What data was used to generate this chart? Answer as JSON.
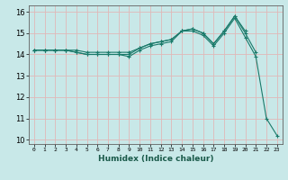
{
  "xlabel": "Humidex (Indice chaleur)",
  "ylabel": "",
  "xlim": [
    -0.5,
    23.5
  ],
  "ylim": [
    9.8,
    16.3
  ],
  "yticks": [
    10,
    11,
    12,
    13,
    14,
    15,
    16
  ],
  "xticks": [
    0,
    1,
    2,
    3,
    4,
    5,
    6,
    7,
    8,
    9,
    10,
    11,
    12,
    13,
    14,
    15,
    16,
    17,
    18,
    19,
    20,
    21,
    22,
    23
  ],
  "bg_color": "#c8e8e8",
  "grid_color": "#e0b8b8",
  "line_color": "#1a7a6a",
  "series": [
    [
      14.2,
      14.2,
      14.2,
      14.2,
      14.1,
      14.0,
      14.0,
      14.0,
      14.0,
      13.9,
      14.2,
      14.4,
      14.5,
      14.6,
      15.1,
      15.1,
      14.9,
      14.4,
      15.0,
      15.7,
      14.8,
      13.9,
      11.0,
      10.2
    ],
    [
      14.2,
      14.2,
      14.2,
      14.2,
      14.1,
      14.0,
      14.0,
      14.0,
      14.0,
      14.0,
      14.3,
      14.5,
      14.6,
      14.7,
      15.1,
      15.2,
      15.0,
      14.5,
      15.1,
      15.8,
      15.0,
      14.1,
      null,
      null
    ],
    [
      14.2,
      14.2,
      14.2,
      14.2,
      14.2,
      14.1,
      14.1,
      14.1,
      14.1,
      14.1,
      14.3,
      14.5,
      14.6,
      14.7,
      15.1,
      15.2,
      15.0,
      14.5,
      15.1,
      15.8,
      15.1,
      null,
      null,
      null
    ]
  ]
}
